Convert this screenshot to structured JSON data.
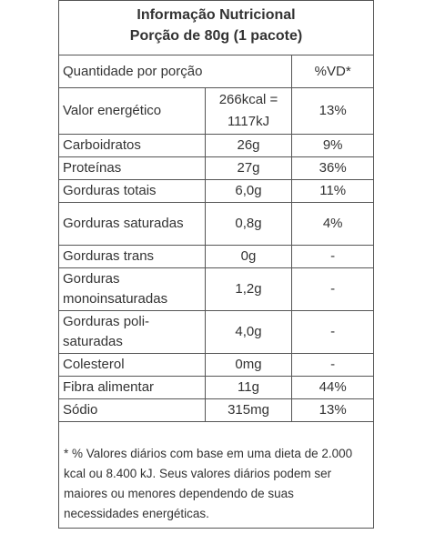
{
  "header": {
    "title": "Informação Nutricional",
    "serving": "Porção de 80g (1 pacote)"
  },
  "table": {
    "col_quantity": "Quantidade por porção",
    "col_vd": "%VD*",
    "rows": [
      {
        "name": "Valor energético",
        "amount": "266kcal = 1117kJ",
        "vd": "13%"
      },
      {
        "name": "Carboidratos",
        "amount": "26g",
        "vd": "9%"
      },
      {
        "name": "Proteínas",
        "amount": "27g",
        "vd": "36%"
      },
      {
        "name": "Gorduras totais",
        "amount": "6,0g",
        "vd": "11%"
      },
      {
        "name": "Gorduras saturadas",
        "amount": "0,8g",
        "vd": "4%"
      },
      {
        "name": "Gorduras trans",
        "amount": "0g",
        "vd": "-"
      },
      {
        "name": "Gorduras monoinsaturadas",
        "amount": "1,2g",
        "vd": "-"
      },
      {
        "name": "Gorduras poli-saturadas",
        "amount": "4,0g",
        "vd": "-"
      },
      {
        "name": "Colesterol",
        "amount": "0mg",
        "vd": "-"
      },
      {
        "name": "Fibra alimentar",
        "amount": "11g",
        "vd": "44%"
      },
      {
        "name": "Sódio",
        "amount": "315mg",
        "vd": "13%"
      }
    ]
  },
  "footnote": "* % Valores diários com base em uma dieta de 2.000 kcal ou 8.400 kJ. Seus valores diários podem ser maiores ou menores dependendo de suas necessidades energéticas."
}
